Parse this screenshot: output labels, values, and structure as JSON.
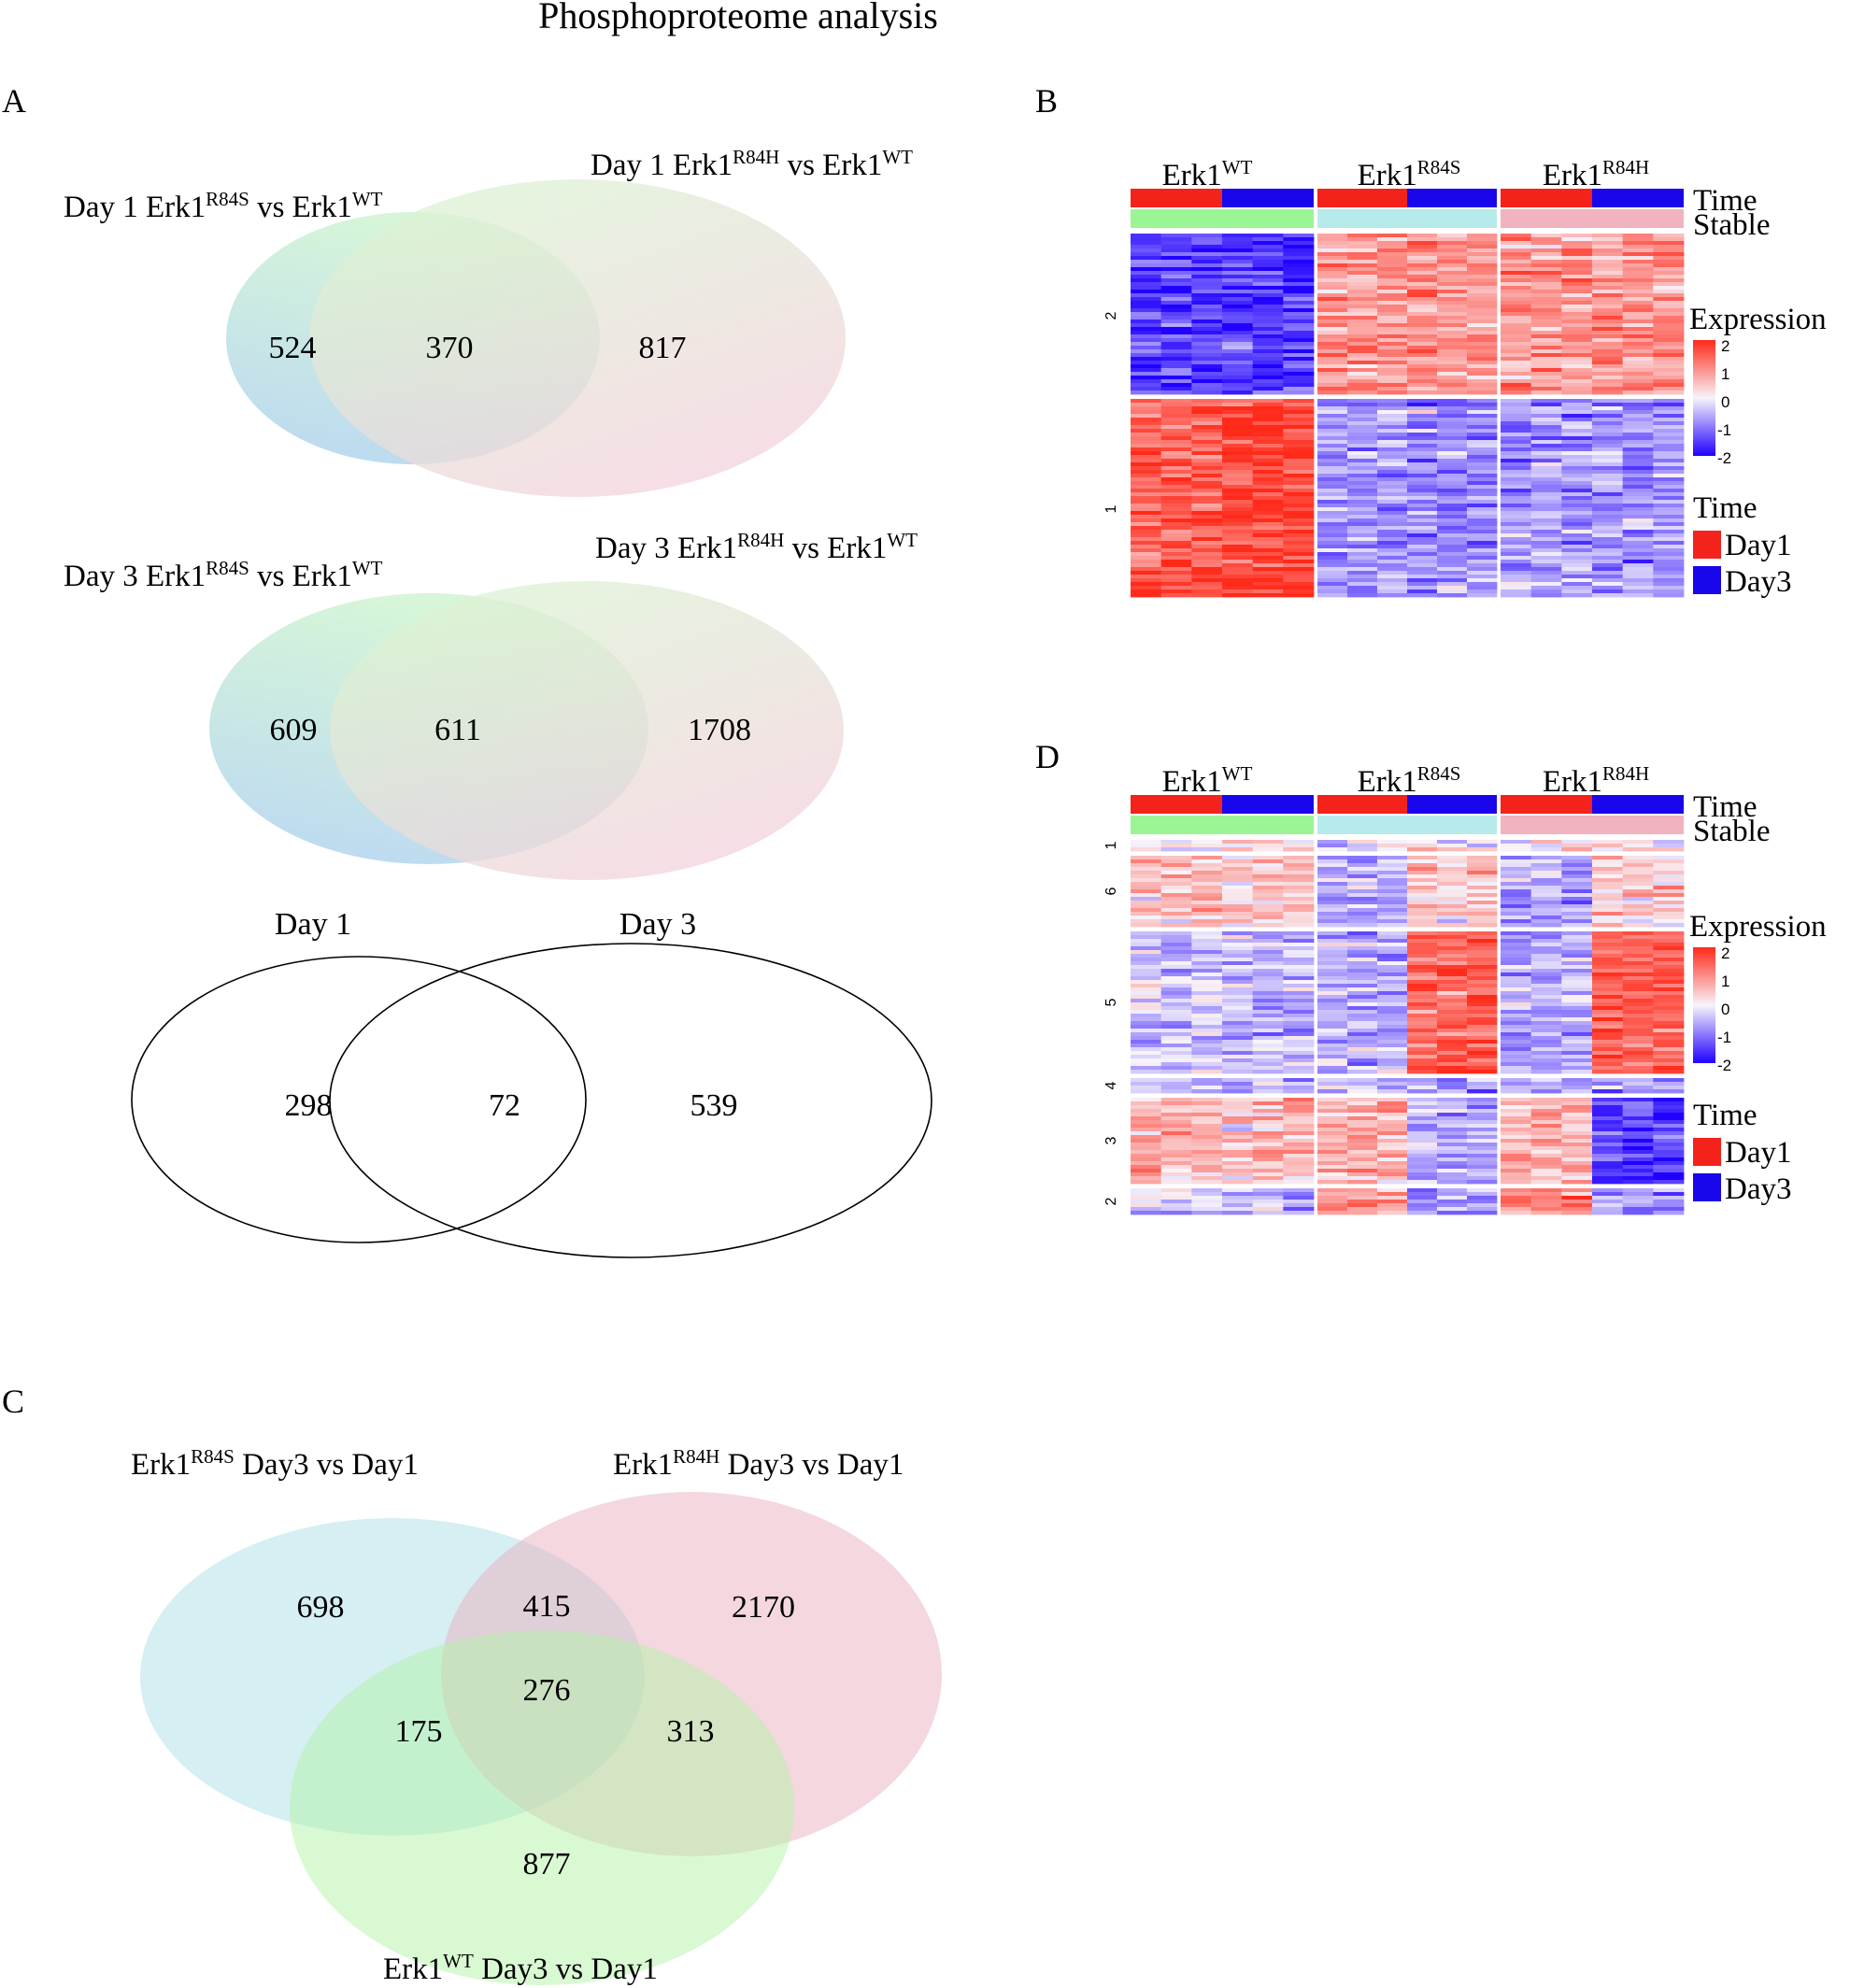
{
  "figure": {
    "title": "Phosphoproteome analysis"
  },
  "colors": {
    "day1": "#f3231c",
    "day3": "#1a06ea",
    "stable_wt": "#9cf595",
    "stable_r84s": "#b7eaea",
    "stable_r84h": "#f1b3bf",
    "heat_low": "#2000ff",
    "heat_mid": "#f8f4fa",
    "heat_high": "#ff2a1a",
    "venn_blue": "#aad8e6",
    "venn_green": "#c8f4c0",
    "venn_pink": "#f2c8d2"
  },
  "panels": {
    "A": {
      "label": "A",
      "venn1": {
        "left_title": "Day 1 Erk1",
        "left_sup": "R84S",
        "left_mid": " vs Erk1",
        "left_sup2": "WT",
        "right_title": "Day 1 Erk1",
        "right_sup": "R84H",
        "right_mid": " vs Erk1",
        "right_sup2": "WT",
        "left_only": "524",
        "both": "370",
        "right_only": "817"
      },
      "venn2": {
        "left_title": "Day 3 Erk1",
        "left_sup": "R84S",
        "left_mid": " vs Erk1",
        "left_sup2": "WT",
        "right_title": "Day 3 Erk1",
        "right_sup": "R84H",
        "right_mid": " vs Erk1",
        "right_sup2": "WT",
        "left_only": "609",
        "both": "611",
        "right_only": "1708"
      },
      "venn3": {
        "left_title": "Day 1",
        "right_title": "Day 3",
        "left_only": "298",
        "both": "72",
        "right_only": "539"
      }
    },
    "B": {
      "label": "B",
      "groups": [
        {
          "name": "Erk1",
          "sup": "WT"
        },
        {
          "name": "Erk1",
          "sup": "R84S"
        },
        {
          "name": "Erk1",
          "sup": "R84H"
        }
      ],
      "annotation_rows": [
        "Time",
        "Stable"
      ],
      "cluster_labels": [
        "2",
        "1"
      ],
      "legend": {
        "expression_title": "Expression",
        "ticks": [
          "2",
          "1",
          "0",
          "-1",
          "-2"
        ],
        "time_title": "Time",
        "time_items": [
          "Day1",
          "Day3"
        ]
      }
    },
    "D": {
      "label": "D",
      "groups": [
        {
          "name": "Erk1",
          "sup": "WT"
        },
        {
          "name": "Erk1",
          "sup": "R84S"
        },
        {
          "name": "Erk1",
          "sup": "R84H"
        }
      ],
      "annotation_rows": [
        "Time",
        "Stable"
      ],
      "cluster_labels": [
        "1",
        "6",
        "5",
        "4",
        "3",
        "2"
      ],
      "legend": {
        "expression_title": "Expression",
        "ticks": [
          "2",
          "1",
          "0",
          "-1",
          "-2"
        ],
        "time_title": "Time",
        "time_items": [
          "Day1",
          "Day3"
        ]
      }
    },
    "C": {
      "label": "C",
      "set_top_left": {
        "name": "Erk1",
        "sup": "R84S",
        "rest": " Day3 vs Day1"
      },
      "set_top_right": {
        "name": "Erk1",
        "sup": "R84H",
        "rest": " Day3 vs Day1"
      },
      "set_bottom": {
        "name": "Erk1",
        "sup": "WT",
        "rest": " Day3 vs Day1"
      },
      "counts": {
        "only_r84s": "698",
        "r84s_r84h": "415",
        "only_r84h": "2170",
        "all_three": "276",
        "r84s_wt": "175",
        "r84h_wt": "313",
        "only_wt": "877"
      }
    }
  },
  "chart_data": [
    {
      "type": "venn",
      "panel": "A",
      "title": "Day 1 Erk1R84S vs Erk1WT / Day 1 Erk1R84H vs Erk1WT",
      "sets": [
        "Day 1 Erk1R84S vs Erk1WT",
        "Day 1 Erk1R84H vs Erk1WT"
      ],
      "regions": {
        "left_only": 524,
        "both": 370,
        "right_only": 817
      }
    },
    {
      "type": "venn",
      "panel": "A",
      "title": "Day 3 Erk1R84S vs Erk1WT / Day 3 Erk1R84H vs Erk1WT",
      "sets": [
        "Day 3 Erk1R84S vs Erk1WT",
        "Day 3 Erk1R84H vs Erk1WT"
      ],
      "regions": {
        "left_only": 609,
        "both": 611,
        "right_only": 1708
      }
    },
    {
      "type": "venn",
      "panel": "A",
      "title": "Day 1 vs Day 3 overlap",
      "sets": [
        "Day 1",
        "Day 3"
      ],
      "regions": {
        "left_only": 298,
        "both": 72,
        "right_only": 539
      }
    },
    {
      "type": "heatmap",
      "panel": "B",
      "columns": [
        "Erk1WT",
        "Erk1R84S",
        "Erk1R84H"
      ],
      "column_annotations": {
        "Time": [
          "Day1",
          "Day3"
        ],
        "Stable": [
          "Erk1WT",
          "Erk1R84S",
          "Erk1R84H"
        ]
      },
      "row_clusters": [
        "2",
        "1"
      ],
      "scale": [
        -2,
        2
      ]
    },
    {
      "type": "heatmap",
      "panel": "D",
      "columns": [
        "Erk1WT",
        "Erk1R84S",
        "Erk1R84H"
      ],
      "column_annotations": {
        "Time": [
          "Day1",
          "Day3"
        ],
        "Stable": [
          "Erk1WT",
          "Erk1R84S",
          "Erk1R84H"
        ]
      },
      "row_clusters": [
        "1",
        "6",
        "5",
        "4",
        "3",
        "2"
      ],
      "scale": [
        -2,
        2
      ]
    },
    {
      "type": "venn",
      "panel": "C",
      "sets": [
        "Erk1R84S Day3 vs Day1",
        "Erk1R84H Day3 vs Day1",
        "Erk1WT Day3 vs Day1"
      ],
      "regions": {
        "R84S_only": 698,
        "R84S_R84H": 415,
        "R84H_only": 2170,
        "all": 276,
        "R84S_WT": 175,
        "R84H_WT": 313,
        "WT_only": 877
      }
    }
  ]
}
